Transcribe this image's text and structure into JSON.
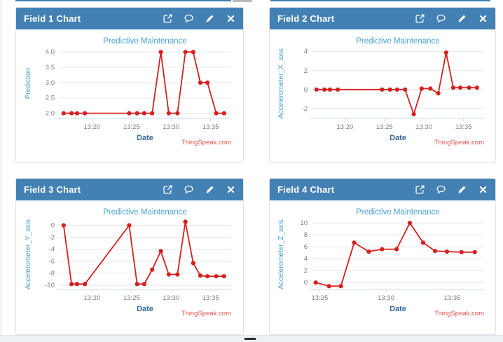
{
  "colors": {
    "header_bg": "#4381b5",
    "series_line": "#d62020",
    "chart_title": "#4aa0d3",
    "ylabel": "#4aa0d3",
    "axis_label": "#36699e",
    "tick_label": "#7d7d7d",
    "gridline": "#e6e6e6",
    "axis_line": "#c9d9e8",
    "attribution": "#e04f4f"
  },
  "header_icons": [
    "export",
    "comment",
    "edit",
    "close"
  ],
  "panels": [
    {
      "header": {
        "title": "Field 1 Chart"
      },
      "chart_data": {
        "type": "line",
        "title": "Predictive Maintenance",
        "xlabel": "Date",
        "ylabel": "Prediction",
        "attribution": "ThingSpeak.com",
        "x_min_after_13h": [
          16.4,
          17.4,
          18.1,
          19.1,
          24.7,
          25.7,
          26.6,
          27.6,
          28.7,
          29.7,
          30.8,
          31.8,
          32.8,
          33.7,
          34.6,
          35.7,
          36.7
        ],
        "values": [
          2,
          2,
          2,
          2,
          2,
          2,
          2,
          2,
          4,
          2,
          2,
          4,
          4,
          3,
          3,
          2,
          2
        ],
        "xlim": [
          15.8,
          37.6
        ],
        "ylim": [
          1.83,
          4.12
        ],
        "xticks": {
          "values": [
            20,
            25,
            30,
            35
          ],
          "labels": [
            "13:20",
            "13:25",
            "13:30",
            "13:35"
          ]
        },
        "yticks": {
          "values": [
            2.0,
            2.5,
            3.0,
            3.5,
            4.0
          ],
          "labels": [
            "2.0",
            "2.5",
            "3.0",
            "3.5",
            "4.0"
          ]
        },
        "grid": true,
        "legend": false
      }
    },
    {
      "header": {
        "title": "Field 2 Chart"
      },
      "chart_data": {
        "type": "line",
        "title": "Predictive Maintenance",
        "xlabel": "Date",
        "ylabel": "Accelerometer_X_axis",
        "attribution": "ThingSpeak.com",
        "x_min_after_13h": [
          16.4,
          17.4,
          18.1,
          19.1,
          24.7,
          25.7,
          26.6,
          27.6,
          28.7,
          29.7,
          30.8,
          31.8,
          32.8,
          33.7,
          34.6,
          35.7,
          36.7
        ],
        "values": [
          0,
          0,
          0,
          0,
          0,
          0,
          0,
          0,
          -2.6,
          0.1,
          0.1,
          -0.4,
          3.9,
          0.2,
          0.2,
          0.2,
          0.2
        ],
        "xlim": [
          15.8,
          37.6
        ],
        "ylim": [
          -3.05,
          4.35
        ],
        "xticks": {
          "values": [
            20,
            25,
            30,
            35
          ],
          "labels": [
            "13:20",
            "13:25",
            "13:30",
            "13:35"
          ]
        },
        "yticks": {
          "values": [
            -2,
            0,
            2,
            4
          ],
          "labels": [
            "-2",
            "0",
            "2",
            "4"
          ]
        },
        "grid": true,
        "legend": false
      }
    },
    {
      "header": {
        "title": "Field 3 Chart"
      },
      "chart_data": {
        "type": "line",
        "title": "Predictive Maintenance",
        "xlabel": "Date",
        "ylabel": "Accelerometer_Y_axis",
        "attribution": "ThingSpeak.com",
        "x_min_after_13h": [
          16.4,
          17.4,
          18.1,
          19.1,
          24.7,
          25.7,
          26.6,
          27.6,
          28.7,
          29.7,
          30.8,
          31.8,
          32.8,
          33.7,
          34.6,
          35.7,
          36.7
        ],
        "values": [
          0,
          -9.8,
          -9.8,
          -9.8,
          0,
          -9.8,
          -9.8,
          -7.4,
          -4.3,
          -8.2,
          -8.2,
          0.6,
          -6.3,
          -8.4,
          -8.5,
          -8.5,
          -8.5
        ],
        "xlim": [
          15.8,
          37.6
        ],
        "ylim": [
          -10.7,
          1.0
        ],
        "xticks": {
          "values": [
            20,
            25,
            30,
            35
          ],
          "labels": [
            "13:20",
            "13:25",
            "13:30",
            "13:35"
          ]
        },
        "yticks": {
          "values": [
            0,
            -2,
            -4,
            -6,
            -8,
            -10
          ],
          "labels": [
            "0",
            "-2",
            "-4",
            "-6",
            "-8",
            "-10"
          ]
        },
        "grid": true,
        "legend": false
      }
    },
    {
      "header": {
        "title": "Field 4 Chart"
      },
      "chart_data": {
        "type": "line",
        "title": "Predictive Maintenance",
        "xlabel": "Date",
        "ylabel": "Accelerometer_Z_axis",
        "attribution": "ThingSpeak.com",
        "x_min_after_13h": [
          24.7,
          25.7,
          26.6,
          27.6,
          28.7,
          29.7,
          30.8,
          31.8,
          32.8,
          33.7,
          34.6,
          35.7,
          36.7
        ],
        "values": [
          0,
          -0.6,
          -0.6,
          6.7,
          5.2,
          5.6,
          5.6,
          10,
          6.7,
          5.3,
          5.2,
          5.1,
          5.1
        ],
        "xlim": [
          24.4,
          37.4
        ],
        "ylim": [
          -1.15,
          10.6
        ],
        "xticks": {
          "values": [
            25,
            30,
            35
          ],
          "labels": [
            "13:25",
            "13:30",
            "13:35"
          ]
        },
        "yticks": {
          "values": [
            0,
            2,
            4,
            6,
            8,
            10
          ],
          "labels": [
            "0",
            "2",
            "4",
            "6",
            "8",
            "10"
          ]
        },
        "grid": true,
        "legend": false
      }
    }
  ]
}
